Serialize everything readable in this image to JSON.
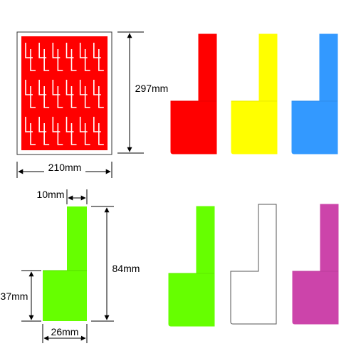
{
  "sheet": {
    "width_label": "210mm",
    "height_label": "297mm",
    "color": "#ff0000",
    "rows": 3,
    "labels_per_row": 12
  },
  "tag": {
    "tab_width_label": "10mm",
    "height_label": "84mm",
    "body_height_label": "37mm",
    "body_width_label": "26mm",
    "color": "#66ff00"
  },
  "swatches": [
    {
      "name": "red",
      "color": "#ff0000"
    },
    {
      "name": "yellow",
      "color": "#ffff00"
    },
    {
      "name": "blue",
      "color": "#3399ff"
    },
    {
      "name": "green",
      "color": "#66ff00"
    },
    {
      "name": "white",
      "color": "#ffffff"
    },
    {
      "name": "magenta",
      "color": "#cc44aa"
    }
  ]
}
